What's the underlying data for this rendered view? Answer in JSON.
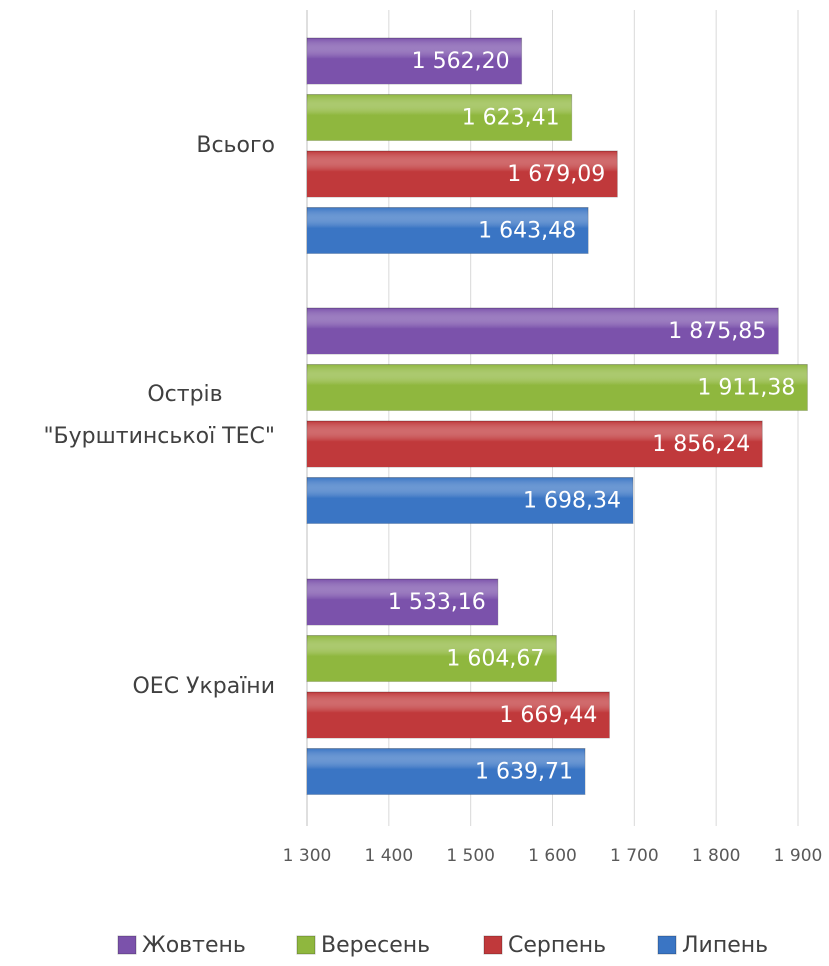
{
  "chart_data": {
    "type": "hbar",
    "categories": [
      "Всього",
      "Острів\n\"Бурштинської ТЕС\"",
      "ОЕС України"
    ],
    "series": [
      {
        "name": "Жовтень",
        "color": "#7b52ab",
        "values": [
          1562.2,
          1875.85,
          1533.16
        ],
        "value_labels": [
          "1 562,20",
          "1 875,85",
          "1 533,16"
        ]
      },
      {
        "name": "Вересень",
        "color": "#8fb73e",
        "values": [
          1623.41,
          1911.38,
          1604.67
        ],
        "value_labels": [
          "1 623,41",
          "1 911,38",
          "1 604,67"
        ]
      },
      {
        "name": "Серпень",
        "color": "#c0393b",
        "values": [
          1679.09,
          1856.24,
          1669.44
        ],
        "value_labels": [
          "1 679,09",
          "1 856,24",
          "1 669,44"
        ]
      },
      {
        "name": "Липень",
        "color": "#3a75c4",
        "values": [
          1643.48,
          1698.34,
          1639.71
        ],
        "value_labels": [
          "1 643,48",
          "1 698,34",
          "1 639,71"
        ]
      }
    ],
    "xlim": [
      1300,
      1900
    ],
    "xticks": [
      {
        "value": 1300,
        "label": "1 300"
      },
      {
        "value": 1400,
        "label": "1 400"
      },
      {
        "value": 1500,
        "label": "1 500"
      },
      {
        "value": 1600,
        "label": "1 600"
      },
      {
        "value": 1700,
        "label": "1 700"
      },
      {
        "value": 1800,
        "label": "1 800"
      },
      {
        "value": 1900,
        "label": "1 900"
      }
    ],
    "grid": true,
    "legend": "bottom"
  }
}
